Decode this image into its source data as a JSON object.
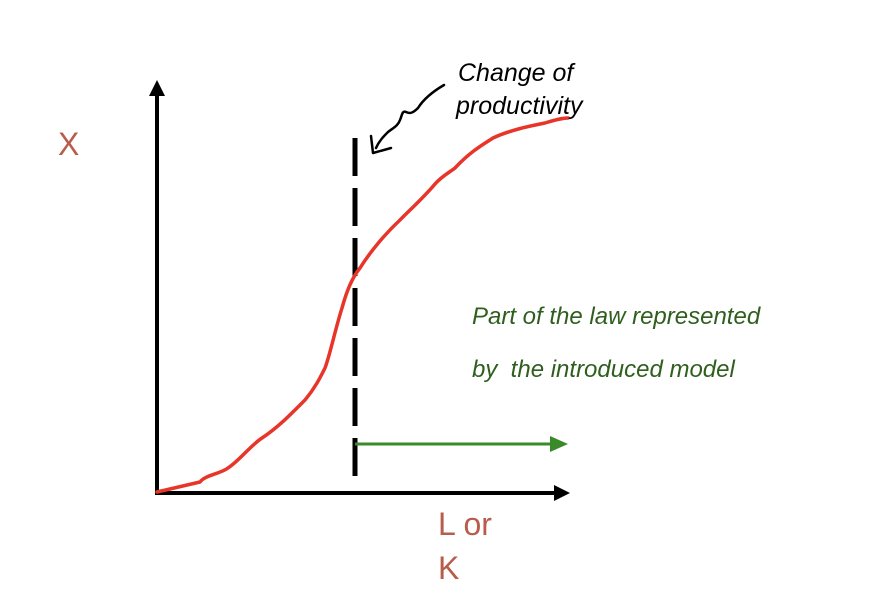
{
  "labels": {
    "y_axis": "X",
    "x_axis_line1": "L or",
    "x_axis_line2": "K",
    "change_line1": "Change of",
    "change_line2": "productivity",
    "model_line1": "Part of the law represented",
    "model_line2": "by  the introduced model"
  },
  "colors": {
    "axis": "#000000",
    "axis_label": "#b85c4c",
    "curve": "#e8352a",
    "model_text": "#2f5e1e",
    "model_arrow": "#3a8a2a",
    "marker": "#000000"
  }
}
